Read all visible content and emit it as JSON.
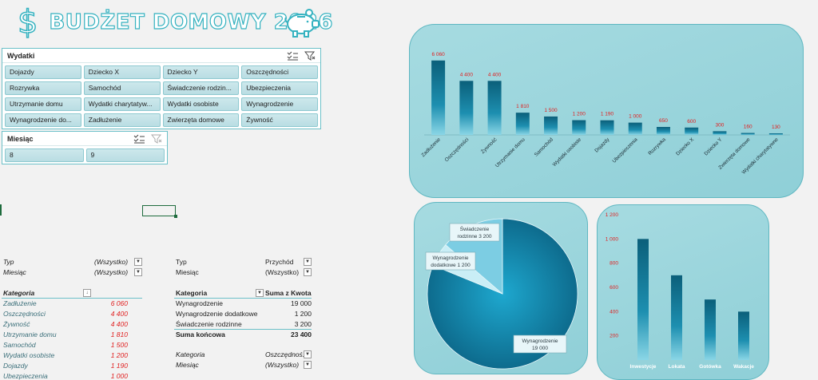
{
  "header": {
    "title": "BUDŻET DOMOWY 2026"
  },
  "slicer_wydatki": {
    "title": "Wydatki",
    "items": [
      "Dojazdy",
      "Dziecko X",
      "Dziecko Y",
      "Oszczędności",
      "Rozrywka",
      "Samochód",
      "Świadczenie rodzin...",
      "Ubezpieczenia",
      "Utrzymanie domu",
      "Wydatki charytatyw...",
      "Wydatki osobiste",
      "Wynagrodzenie",
      "Wynagrodzenie do...",
      "Zadłużenie",
      "Zwierzęta domowe",
      "Żywność"
    ]
  },
  "slicer_miesiac": {
    "title": "Miesiąc",
    "items": [
      "8",
      "9"
    ]
  },
  "pivot1": {
    "filters": [
      {
        "label": "Typ",
        "value": "(Wszystko)"
      },
      {
        "label": "Miesiąc",
        "value": "(Wszystko)"
      }
    ],
    "header": "Kategoria",
    "rows": [
      {
        "label": "Zadłużenie",
        "value": "6 060"
      },
      {
        "label": "Oszczędności",
        "value": "4 400"
      },
      {
        "label": "Żywność",
        "value": "4 400"
      },
      {
        "label": "Utrzymanie domu",
        "value": "1 810"
      },
      {
        "label": "Samochód",
        "value": "1 500"
      },
      {
        "label": "Wydatki osobiste",
        "value": "1 200"
      },
      {
        "label": "Dojazdy",
        "value": "1 190"
      },
      {
        "label": "Ubezpieczenia",
        "value": "1 000"
      }
    ]
  },
  "pivot2": {
    "filters": [
      {
        "label": "Typ",
        "value": "Przychód"
      },
      {
        "label": "Miesiąc",
        "value": "(Wszystko)"
      }
    ],
    "header_label": "Kategoria",
    "header_value": "Suma z Kwota",
    "rows": [
      {
        "label": "Wynagrodzenie",
        "value": "19 000"
      },
      {
        "label": "Wynagrodzenie dodatkowe",
        "value": "1 200"
      },
      {
        "label": "Świadczenie rodzinne",
        "value": "3 200"
      }
    ],
    "total_label": "Suma końcowa",
    "total_value": "23 400"
  },
  "pivot3": {
    "filters": [
      {
        "label": "Kategoria",
        "value": "Oszczędnoś..."
      },
      {
        "label": "Miesiąc",
        "value": "(Wszystko)"
      }
    ]
  },
  "chart_data": [
    {
      "type": "bar",
      "categories": [
        "Zadłużenie",
        "Oszczędności",
        "Żywność",
        "Utrzymanie domu",
        "Samochód",
        "Wydatki osobiste",
        "Dojazdy",
        "Ubezpieczenia",
        "Rozrywka",
        "Dziecko X",
        "Dziecko Y",
        "Zwierzęta domowe",
        "Wydatki charytatywne"
      ],
      "values": [
        6060,
        4400,
        4400,
        1810,
        1500,
        1200,
        1190,
        1000,
        650,
        600,
        300,
        160,
        130
      ],
      "data_labels": [
        "6 060",
        "4 400",
        "4 400",
        "1 810",
        "1 500",
        "1 200",
        "1 190",
        "1 000",
        "650",
        "600",
        "300",
        "160",
        "130"
      ],
      "ylim": [
        0,
        6500
      ],
      "label_color": "#e02020"
    },
    {
      "type": "pie",
      "categories": [
        "Wynagrodzenie",
        "Wynagrodzenie dodatkowe",
        "Świadczenie rodzinne"
      ],
      "values": [
        19000,
        1200,
        3200
      ],
      "labels": [
        {
          "name": "Wynagrodzenie",
          "value": "19 000"
        },
        {
          "name": "Wynagrodzenie dodatkowe",
          "value": "1 200"
        },
        {
          "name": "Świadczenie rodzinne",
          "value": "3 200"
        }
      ]
    },
    {
      "type": "bar",
      "categories": [
        "Inwestycje",
        "Lokata",
        "Gotówka",
        "Wakacje"
      ],
      "values": [
        1000,
        700,
        500,
        400
      ],
      "yticks": [
        "200",
        "400",
        "600",
        "800",
        "1 000",
        "1 200"
      ],
      "ytick_values": [
        200,
        400,
        600,
        800,
        1000,
        1200
      ],
      "ylim": [
        0,
        1200
      ],
      "tick_color": "#e02020"
    }
  ]
}
